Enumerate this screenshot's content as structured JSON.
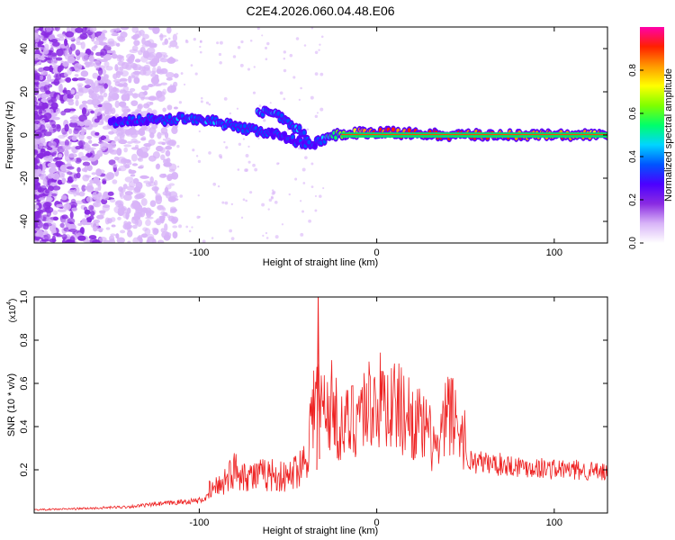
{
  "title": "C2E4.2026.060.04.48.E06",
  "chart_data": [
    {
      "type": "heatmap",
      "name": "spectrogram",
      "xlabel": "Height of straight line (km)",
      "ylabel": "Frequency (Hz)",
      "xlim": [
        -193,
        130
      ],
      "ylim": [
        -50,
        50
      ],
      "xticks": [
        "-100",
        "0",
        "100"
      ],
      "xtick_values": [
        -100,
        0,
        100
      ],
      "yticks": [
        "-40",
        "-20",
        "0",
        "20",
        "40"
      ],
      "ytick_values": [
        -40,
        -20,
        0,
        20,
        40
      ],
      "colorbar": {
        "label": "Normalized spectral amplitude",
        "range": [
          0,
          1
        ],
        "ticks": [
          "0.0",
          "0.2",
          "0.4",
          "0.6",
          "0.8"
        ],
        "tick_values": [
          0.0,
          0.2,
          0.4,
          0.6,
          0.8
        ],
        "colors": [
          "#ffffff",
          "#d8b4f8",
          "#8a2be2",
          "#4b00ff",
          "#0055ff",
          "#00d5ff",
          "#00ff6a",
          "#7fff00",
          "#ffff00",
          "#ff9900",
          "#ff2000",
          "#ff00aa"
        ]
      },
      "ridge": [
        {
          "x": -150,
          "f": 6,
          "amp": 0.28
        },
        {
          "x": -135,
          "f": 7,
          "amp": 0.34
        },
        {
          "x": -120,
          "f": 7,
          "amp": 0.36
        },
        {
          "x": -105,
          "f": 8,
          "amp": 0.38
        },
        {
          "x": -90,
          "f": 6,
          "amp": 0.38
        },
        {
          "x": -75,
          "f": 3,
          "amp": 0.36
        },
        {
          "x": -60,
          "f": 1,
          "amp": 0.36
        },
        {
          "x": -45,
          "f": -3,
          "amp": 0.34
        },
        {
          "x": -35,
          "f": -4,
          "amp": 0.3
        },
        {
          "x": -25,
          "f": 0,
          "amp": 0.55
        },
        {
          "x": -10,
          "f": 1,
          "amp": 0.75
        },
        {
          "x": 0,
          "f": 1,
          "amp": 0.85
        },
        {
          "x": 10,
          "f": 1,
          "amp": 0.88
        },
        {
          "x": 40,
          "f": 0,
          "amp": 0.86
        },
        {
          "x": 80,
          "f": 0,
          "amp": 0.84
        },
        {
          "x": 130,
          "f": 0,
          "amp": 0.8
        }
      ],
      "secondary_ridge": [
        {
          "x": -67,
          "f": 11,
          "amp": 0.4
        },
        {
          "x": -55,
          "f": 9,
          "amp": 0.38
        },
        {
          "x": -45,
          "f": 3,
          "amp": 0.38
        },
        {
          "x": -38,
          "f": -2,
          "amp": 0.35
        }
      ]
    },
    {
      "type": "line",
      "name": "snr",
      "xlabel": "Height of straight line (km)",
      "ylabel": "SNR (10 * v/v)",
      "multiplier": "(x10",
      "multiplier_exp": "4",
      "multiplier_close": ")",
      "color": "#ee2222",
      "xlim": [
        -193,
        130
      ],
      "ylim": [
        0,
        1.0
      ],
      "xticks": [
        "-100",
        "0",
        "100"
      ],
      "xtick_values": [
        -100,
        0,
        100
      ],
      "yticks": [
        "0.2",
        "0.4",
        "0.6",
        "0.8",
        "1.0"
      ],
      "ytick_values": [
        0.2,
        0.4,
        0.6,
        0.8,
        1.0
      ],
      "envelope": [
        {
          "x": -193,
          "y": 0.02
        },
        {
          "x": -160,
          "y": 0.03
        },
        {
          "x": -140,
          "y": 0.04
        },
        {
          "x": -120,
          "y": 0.06
        },
        {
          "x": -100,
          "y": 0.08
        },
        {
          "x": -90,
          "y": 0.12
        },
        {
          "x": -80,
          "y": 0.2
        },
        {
          "x": -70,
          "y": 0.17
        },
        {
          "x": -60,
          "y": 0.18
        },
        {
          "x": -50,
          "y": 0.16
        },
        {
          "x": -40,
          "y": 0.25
        },
        {
          "x": -35,
          "y": 0.55
        },
        {
          "x": -30,
          "y": 0.48
        },
        {
          "x": -25,
          "y": 0.5
        },
        {
          "x": -20,
          "y": 0.38
        },
        {
          "x": -15,
          "y": 0.42
        },
        {
          "x": -10,
          "y": 0.48
        },
        {
          "x": 0,
          "y": 0.52
        },
        {
          "x": 10,
          "y": 0.5
        },
        {
          "x": 20,
          "y": 0.44
        },
        {
          "x": 30,
          "y": 0.35
        },
        {
          "x": 35,
          "y": 0.28
        },
        {
          "x": 40,
          "y": 0.48
        },
        {
          "x": 45,
          "y": 0.42
        },
        {
          "x": 50,
          "y": 0.34
        },
        {
          "x": 60,
          "y": 0.32
        },
        {
          "x": 70,
          "y": 0.31
        },
        {
          "x": 80,
          "y": 0.3
        },
        {
          "x": 100,
          "y": 0.28
        },
        {
          "x": 120,
          "y": 0.27
        },
        {
          "x": 130,
          "y": 0.25
        }
      ],
      "peak": {
        "x": -33,
        "y": 1.0
      }
    }
  ]
}
